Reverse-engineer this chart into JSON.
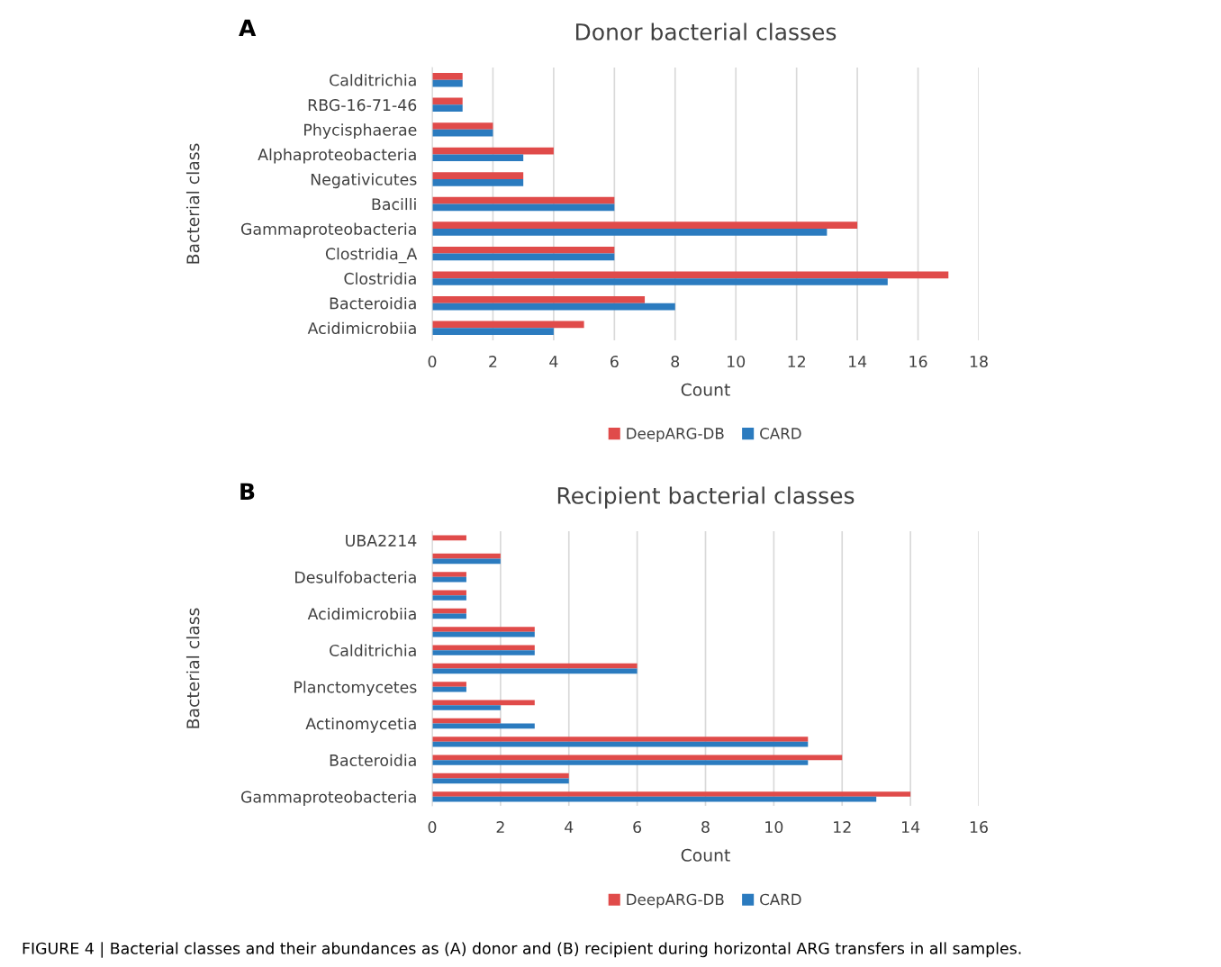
{
  "chart_data": [
    {
      "type": "bar",
      "orientation": "horizontal",
      "title": "Donor bacterial classes",
      "xlabel": "Count",
      "ylabel": "Bacterial class",
      "categories": [
        "Calditrichia",
        "RBG-16-71-46",
        "Phycisphaerae",
        "Alphaproteobacteria",
        "Negativicutes",
        "Bacilli",
        "Gammaproteobacteria",
        "Clostridia_A",
        "Clostridia",
        "Bacteroidia",
        "Acidimicrobiia"
      ],
      "series": [
        {
          "name": "DeepARG-DB",
          "color": "#e04b4a",
          "values": [
            1,
            1,
            2,
            4,
            3,
            6,
            14,
            6,
            17,
            7,
            5
          ]
        },
        {
          "name": "CARD",
          "color": "#2b7bbf",
          "values": [
            1,
            1,
            2,
            3,
            3,
            6,
            13,
            6,
            15,
            8,
            4
          ]
        }
      ],
      "xlim": [
        0,
        18
      ],
      "xticks": [
        0,
        2,
        4,
        6,
        8,
        10,
        12,
        14,
        16,
        18
      ],
      "grid": "x",
      "legend": "bottom",
      "annotations": [
        "A"
      ]
    },
    {
      "type": "bar",
      "orientation": "horizontal",
      "title": "Recipient bacterial classes",
      "xlabel": "Count",
      "ylabel": "Bacterial class",
      "categories": [
        "UBA2214",
        null,
        "Desulfobacteria",
        null,
        "Acidimicrobiia",
        null,
        "Calditrichia",
        null,
        "Planctomycetes",
        null,
        "Actinomycetia",
        null,
        "Bacteroidia",
        null,
        "Gammaproteobacteria"
      ],
      "series": [
        {
          "name": "DeepARG-DB",
          "color": "#e04b4a",
          "values": [
            1,
            2,
            1,
            1,
            1,
            3,
            3,
            6,
            1,
            3,
            2,
            11,
            12,
            4,
            14
          ]
        },
        {
          "name": "CARD",
          "color": "#2b7bbf",
          "values": [
            null,
            2,
            1,
            1,
            1,
            3,
            3,
            6,
            1,
            2,
            3,
            11,
            11,
            4,
            13
          ]
        }
      ],
      "xlim": [
        0,
        16
      ],
      "xticks": [
        0,
        2,
        4,
        6,
        8,
        10,
        12,
        14,
        16
      ],
      "grid": "x",
      "legend": "bottom",
      "annotations": [
        "B",
        "FIGURE 4 | Bacterial classes and their abundances as (A) donor and (B) recipient during horizontal ARG transfers in all samples."
      ]
    }
  ]
}
